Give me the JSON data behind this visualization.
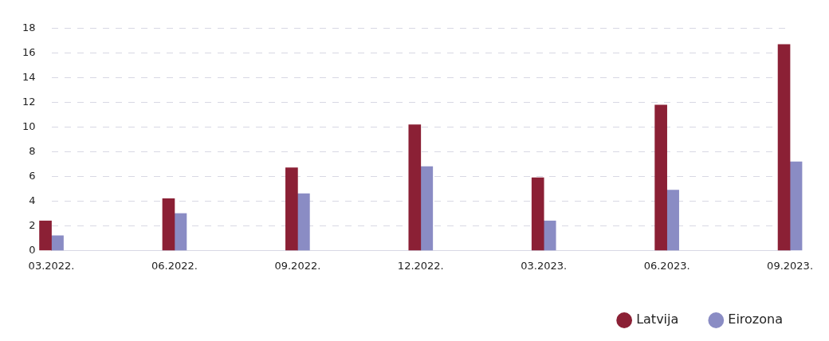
{
  "chart_data": {
    "type": "bar",
    "categories": [
      "03.2022.",
      "06.2022.",
      "09.2022.",
      "12.2022.",
      "03.2023.",
      "06.2023.",
      "09.2023."
    ],
    "series": [
      {
        "name": "Latvija",
        "color": "#8b2035",
        "values": [
          2.4,
          4.2,
          6.7,
          10.2,
          5.9,
          11.8,
          16.7
        ]
      },
      {
        "name": "Eirozona",
        "color": "#8a8cc4",
        "values": [
          1.2,
          3.0,
          4.6,
          6.8,
          2.4,
          4.9,
          7.2
        ]
      }
    ],
    "ylim": [
      0,
      18
    ],
    "yticks": [
      0,
      2,
      4,
      6,
      8,
      10,
      12,
      14,
      16,
      18
    ],
    "grid": "y",
    "legend": "bottom right"
  }
}
